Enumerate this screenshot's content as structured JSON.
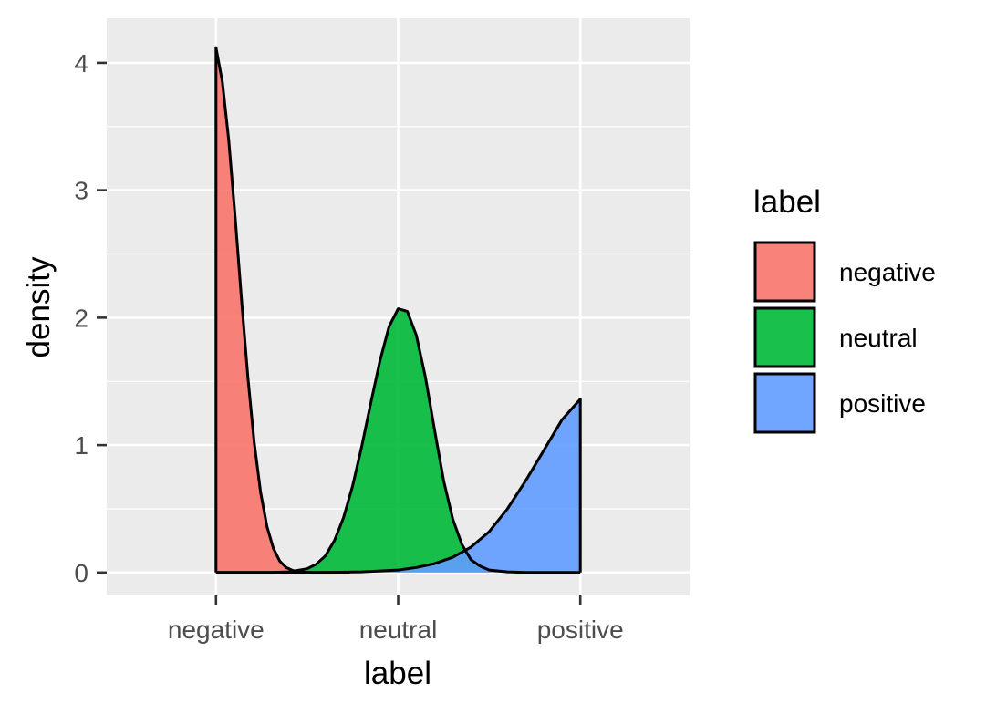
{
  "chart_data": {
    "type": "area",
    "subtype": "density",
    "xlabel": "label",
    "ylabel": "density",
    "x_ticks": [
      "negative",
      "neutral",
      "positive"
    ],
    "x_range": [
      0.4,
      3.6
    ],
    "ylim": [
      -0.18,
      4.35
    ],
    "y_ticks": [
      0,
      1,
      2,
      3,
      4
    ],
    "grid": true,
    "legend": {
      "title": "label",
      "placement": "right",
      "entries": [
        "negative",
        "neutral",
        "positive"
      ]
    },
    "series": [
      {
        "name": "negative",
        "color": "#F8766D",
        "x": [
          1.0,
          1.035,
          1.07,
          1.105,
          1.14,
          1.175,
          1.21,
          1.245,
          1.28,
          1.315,
          1.35,
          1.385,
          1.42,
          1.455,
          1.49,
          1.525,
          1.56,
          1.595,
          1.63,
          1.665,
          1.7,
          1.735
        ],
        "y": [
          4.12,
          3.85,
          3.39,
          2.79,
          2.14,
          1.53,
          1.02,
          0.63,
          0.36,
          0.19,
          0.09,
          0.04,
          0.017,
          0.006,
          0.002,
          0.001,
          0.0,
          0.0,
          0.0,
          0.0,
          0.0,
          0.0
        ]
      },
      {
        "name": "neutral",
        "color": "#00BA38",
        "x": [
          1.0,
          1.1,
          1.2,
          1.3,
          1.4,
          1.5,
          1.55,
          1.6,
          1.65,
          1.7,
          1.75,
          1.8,
          1.85,
          1.9,
          1.95,
          2.0,
          2.05,
          2.1,
          2.15,
          2.2,
          2.25,
          2.3,
          2.35,
          2.4,
          2.45,
          2.5,
          2.6,
          2.7,
          2.8,
          2.9,
          3.0
        ],
        "y": [
          0.0,
          0.0,
          0.0,
          0.0,
          0.005,
          0.03,
          0.065,
          0.13,
          0.25,
          0.43,
          0.68,
          0.99,
          1.33,
          1.66,
          1.93,
          2.07,
          2.05,
          1.86,
          1.53,
          1.12,
          0.72,
          0.42,
          0.22,
          0.1,
          0.05,
          0.02,
          0.005,
          0.0,
          0.0,
          0.0,
          0.0
        ]
      },
      {
        "name": "positive",
        "color": "#619CFF",
        "x": [
          1.0,
          1.2,
          1.4,
          1.6,
          1.8,
          2.0,
          2.1,
          2.2,
          2.3,
          2.4,
          2.5,
          2.6,
          2.7,
          2.8,
          2.9,
          3.0
        ],
        "y": [
          0.0,
          0.0,
          0.0,
          0.0,
          0.005,
          0.02,
          0.04,
          0.07,
          0.12,
          0.2,
          0.32,
          0.5,
          0.72,
          0.96,
          1.2,
          1.36
        ]
      }
    ]
  }
}
